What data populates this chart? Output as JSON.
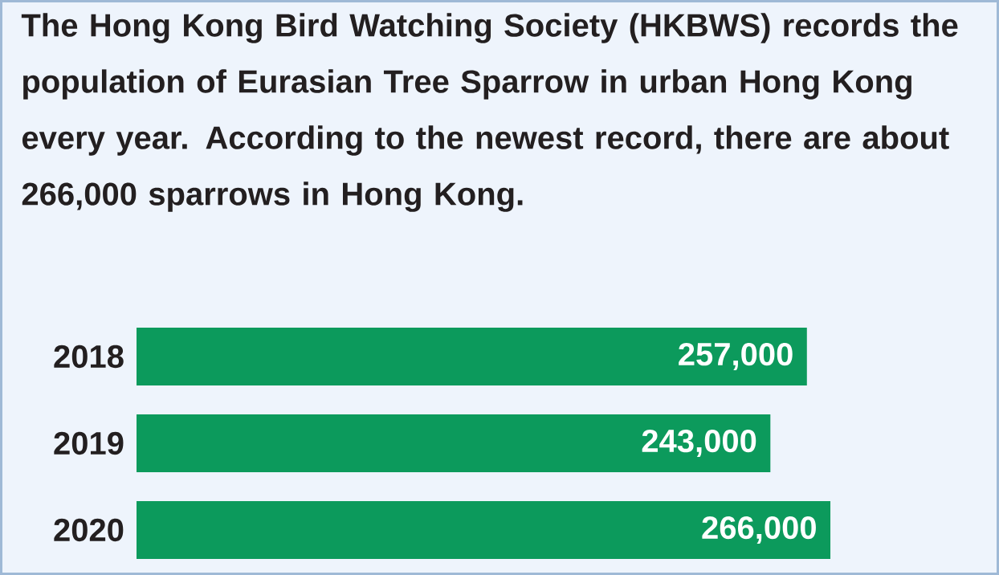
{
  "chart_data": {
    "type": "bar",
    "orientation": "horizontal",
    "title": "The Hong Kong Bird Watching Society (HKBWS) records the population of Eurasian Tree Sparrow in urban Hong Kong every year. According to the newest record, there are about 266,000 sparrows in Hong Kong.",
    "categories": [
      "2018",
      "2019",
      "2020"
    ],
    "values": [
      257000,
      243000,
      266000
    ],
    "value_labels": [
      "257,000",
      "243,000",
      "266,000"
    ],
    "color": "#0c9a5c"
  }
}
